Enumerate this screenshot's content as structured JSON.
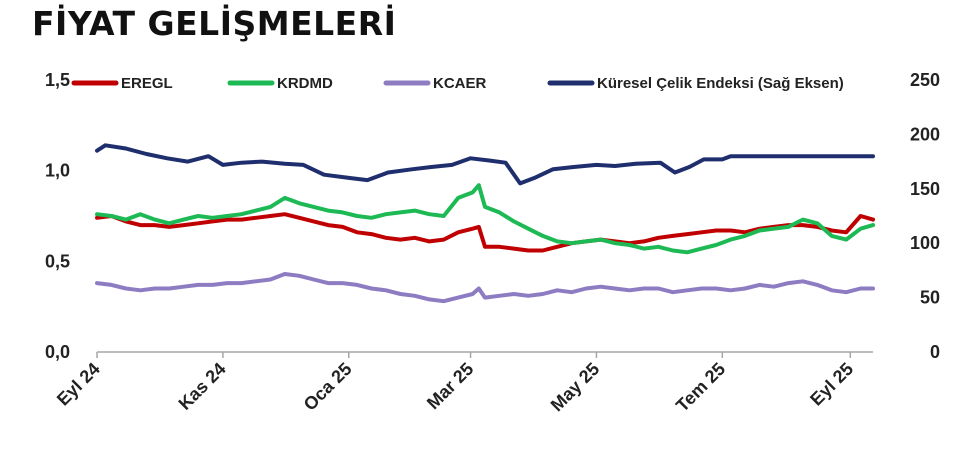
{
  "title": "FİYAT GELİŞMELERİ",
  "chart_data": {
    "type": "line",
    "x_start": "2024-09-01",
    "x_end": "2025-09-12",
    "x_ticks": [
      {
        "date": "2024-09-01",
        "label": "Eyl 24"
      },
      {
        "date": "2024-11-01",
        "label": "Kas 24"
      },
      {
        "date": "2025-01-01",
        "label": "Oca 25"
      },
      {
        "date": "2025-03-01",
        "label": "Mar 25"
      },
      {
        "date": "2025-05-01",
        "label": "May 25"
      },
      {
        "date": "2025-07-01",
        "label": "Tem 25"
      },
      {
        "date": "2025-09-01",
        "label": "Eyl 25"
      }
    ],
    "y_left": {
      "min": 0,
      "max": 1.5,
      "ticks": [
        "0,0",
        "0,5",
        "1,0",
        "1,5"
      ]
    },
    "y_right": {
      "min": 0,
      "max": 250,
      "ticks": [
        "0",
        "50",
        "100",
        "150",
        "200",
        "250"
      ]
    },
    "legend_position": "top",
    "grid": false,
    "series": [
      {
        "name": "EREGL",
        "color": "#c00000",
        "axis": "left",
        "points": [
          [
            "2024-09-01",
            0.74
          ],
          [
            "2024-09-08",
            0.75
          ],
          [
            "2024-09-15",
            0.72
          ],
          [
            "2024-09-22",
            0.7
          ],
          [
            "2024-09-29",
            0.7
          ],
          [
            "2024-10-06",
            0.69
          ],
          [
            "2024-10-13",
            0.7
          ],
          [
            "2024-10-20",
            0.71
          ],
          [
            "2024-10-27",
            0.72
          ],
          [
            "2024-11-03",
            0.73
          ],
          [
            "2024-11-10",
            0.73
          ],
          [
            "2024-11-17",
            0.74
          ],
          [
            "2024-11-24",
            0.75
          ],
          [
            "2024-12-01",
            0.76
          ],
          [
            "2024-12-08",
            0.74
          ],
          [
            "2024-12-15",
            0.72
          ],
          [
            "2024-12-22",
            0.7
          ],
          [
            "2024-12-29",
            0.69
          ],
          [
            "2025-01-05",
            0.66
          ],
          [
            "2025-01-12",
            0.65
          ],
          [
            "2025-01-19",
            0.63
          ],
          [
            "2025-01-26",
            0.62
          ],
          [
            "2025-02-02",
            0.63
          ],
          [
            "2025-02-09",
            0.61
          ],
          [
            "2025-02-16",
            0.62
          ],
          [
            "2025-02-23",
            0.66
          ],
          [
            "2025-03-02",
            0.68
          ],
          [
            "2025-03-05",
            0.69
          ],
          [
            "2025-03-08",
            0.58
          ],
          [
            "2025-03-15",
            0.58
          ],
          [
            "2025-03-22",
            0.57
          ],
          [
            "2025-03-29",
            0.56
          ],
          [
            "2025-04-05",
            0.56
          ],
          [
            "2025-04-12",
            0.58
          ],
          [
            "2025-04-19",
            0.6
          ],
          [
            "2025-04-26",
            0.61
          ],
          [
            "2025-05-03",
            0.62
          ],
          [
            "2025-05-10",
            0.61
          ],
          [
            "2025-05-17",
            0.6
          ],
          [
            "2025-05-24",
            0.61
          ],
          [
            "2025-05-31",
            0.63
          ],
          [
            "2025-06-07",
            0.64
          ],
          [
            "2025-06-14",
            0.65
          ],
          [
            "2025-06-21",
            0.66
          ],
          [
            "2025-06-28",
            0.67
          ],
          [
            "2025-07-05",
            0.67
          ],
          [
            "2025-07-12",
            0.66
          ],
          [
            "2025-07-19",
            0.68
          ],
          [
            "2025-07-26",
            0.69
          ],
          [
            "2025-08-02",
            0.7
          ],
          [
            "2025-08-09",
            0.7
          ],
          [
            "2025-08-16",
            0.69
          ],
          [
            "2025-08-23",
            0.67
          ],
          [
            "2025-08-30",
            0.66
          ],
          [
            "2025-09-06",
            0.75
          ],
          [
            "2025-09-12",
            0.73
          ]
        ]
      },
      {
        "name": "KRDMD",
        "color": "#1db954",
        "axis": "left",
        "points": [
          [
            "2024-09-01",
            0.76
          ],
          [
            "2024-09-08",
            0.75
          ],
          [
            "2024-09-15",
            0.73
          ],
          [
            "2024-09-22",
            0.76
          ],
          [
            "2024-09-29",
            0.73
          ],
          [
            "2024-10-06",
            0.71
          ],
          [
            "2024-10-13",
            0.73
          ],
          [
            "2024-10-20",
            0.75
          ],
          [
            "2024-10-27",
            0.74
          ],
          [
            "2024-11-03",
            0.75
          ],
          [
            "2024-11-10",
            0.76
          ],
          [
            "2024-11-17",
            0.78
          ],
          [
            "2024-11-24",
            0.8
          ],
          [
            "2024-12-01",
            0.85
          ],
          [
            "2024-12-08",
            0.82
          ],
          [
            "2024-12-15",
            0.8
          ],
          [
            "2024-12-22",
            0.78
          ],
          [
            "2024-12-29",
            0.77
          ],
          [
            "2025-01-05",
            0.75
          ],
          [
            "2025-01-12",
            0.74
          ],
          [
            "2025-01-19",
            0.76
          ],
          [
            "2025-01-26",
            0.77
          ],
          [
            "2025-02-02",
            0.78
          ],
          [
            "2025-02-09",
            0.76
          ],
          [
            "2025-02-16",
            0.75
          ],
          [
            "2025-02-23",
            0.85
          ],
          [
            "2025-03-02",
            0.88
          ],
          [
            "2025-03-05",
            0.92
          ],
          [
            "2025-03-08",
            0.8
          ],
          [
            "2025-03-15",
            0.77
          ],
          [
            "2025-03-22",
            0.72
          ],
          [
            "2025-03-29",
            0.68
          ],
          [
            "2025-04-05",
            0.64
          ],
          [
            "2025-04-12",
            0.61
          ],
          [
            "2025-04-19",
            0.6
          ],
          [
            "2025-04-26",
            0.61
          ],
          [
            "2025-05-03",
            0.62
          ],
          [
            "2025-05-10",
            0.6
          ],
          [
            "2025-05-17",
            0.59
          ],
          [
            "2025-05-24",
            0.57
          ],
          [
            "2025-05-31",
            0.58
          ],
          [
            "2025-06-07",
            0.56
          ],
          [
            "2025-06-14",
            0.55
          ],
          [
            "2025-06-21",
            0.57
          ],
          [
            "2025-06-28",
            0.59
          ],
          [
            "2025-07-05",
            0.62
          ],
          [
            "2025-07-12",
            0.64
          ],
          [
            "2025-07-19",
            0.67
          ],
          [
            "2025-07-26",
            0.68
          ],
          [
            "2025-08-02",
            0.69
          ],
          [
            "2025-08-09",
            0.73
          ],
          [
            "2025-08-16",
            0.71
          ],
          [
            "2025-08-23",
            0.64
          ],
          [
            "2025-08-30",
            0.62
          ],
          [
            "2025-09-06",
            0.68
          ],
          [
            "2025-09-12",
            0.7
          ]
        ]
      },
      {
        "name": "KCAER",
        "color": "#8e7cc3",
        "axis": "left",
        "points": [
          [
            "2024-09-01",
            0.38
          ],
          [
            "2024-09-08",
            0.37
          ],
          [
            "2024-09-15",
            0.35
          ],
          [
            "2024-09-22",
            0.34
          ],
          [
            "2024-09-29",
            0.35
          ],
          [
            "2024-10-06",
            0.35
          ],
          [
            "2024-10-13",
            0.36
          ],
          [
            "2024-10-20",
            0.37
          ],
          [
            "2024-10-27",
            0.37
          ],
          [
            "2024-11-03",
            0.38
          ],
          [
            "2024-11-10",
            0.38
          ],
          [
            "2024-11-17",
            0.39
          ],
          [
            "2024-11-24",
            0.4
          ],
          [
            "2024-12-01",
            0.43
          ],
          [
            "2024-12-08",
            0.42
          ],
          [
            "2024-12-15",
            0.4
          ],
          [
            "2024-12-22",
            0.38
          ],
          [
            "2024-12-29",
            0.38
          ],
          [
            "2025-01-05",
            0.37
          ],
          [
            "2025-01-12",
            0.35
          ],
          [
            "2025-01-19",
            0.34
          ],
          [
            "2025-01-26",
            0.32
          ],
          [
            "2025-02-02",
            0.31
          ],
          [
            "2025-02-09",
            0.29
          ],
          [
            "2025-02-16",
            0.28
          ],
          [
            "2025-02-23",
            0.3
          ],
          [
            "2025-03-02",
            0.32
          ],
          [
            "2025-03-05",
            0.35
          ],
          [
            "2025-03-08",
            0.3
          ],
          [
            "2025-03-15",
            0.31
          ],
          [
            "2025-03-22",
            0.32
          ],
          [
            "2025-03-29",
            0.31
          ],
          [
            "2025-04-05",
            0.32
          ],
          [
            "2025-04-12",
            0.34
          ],
          [
            "2025-04-19",
            0.33
          ],
          [
            "2025-04-26",
            0.35
          ],
          [
            "2025-05-03",
            0.36
          ],
          [
            "2025-05-10",
            0.35
          ],
          [
            "2025-05-17",
            0.34
          ],
          [
            "2025-05-24",
            0.35
          ],
          [
            "2025-05-31",
            0.35
          ],
          [
            "2025-06-07",
            0.33
          ],
          [
            "2025-06-14",
            0.34
          ],
          [
            "2025-06-21",
            0.35
          ],
          [
            "2025-06-28",
            0.35
          ],
          [
            "2025-07-05",
            0.34
          ],
          [
            "2025-07-12",
            0.35
          ],
          [
            "2025-07-19",
            0.37
          ],
          [
            "2025-07-26",
            0.36
          ],
          [
            "2025-08-02",
            0.38
          ],
          [
            "2025-08-09",
            0.39
          ],
          [
            "2025-08-16",
            0.37
          ],
          [
            "2025-08-23",
            0.34
          ],
          [
            "2025-08-30",
            0.33
          ],
          [
            "2025-09-06",
            0.35
          ],
          [
            "2025-09-12",
            0.35
          ]
        ]
      },
      {
        "name": "Küresel Çelik Endeksi (Sağ Eksen)",
        "color": "#1f2f6e",
        "axis": "right",
        "points": [
          [
            "2024-09-01",
            185
          ],
          [
            "2024-09-05",
            190
          ],
          [
            "2024-09-15",
            187
          ],
          [
            "2024-09-25",
            182
          ],
          [
            "2024-10-05",
            178
          ],
          [
            "2024-10-15",
            175
          ],
          [
            "2024-10-25",
            180
          ],
          [
            "2024-11-01",
            172
          ],
          [
            "2024-11-10",
            174
          ],
          [
            "2024-11-20",
            175
          ],
          [
            "2024-12-01",
            173
          ],
          [
            "2024-12-10",
            172
          ],
          [
            "2024-12-20",
            163
          ],
          [
            "2025-01-01",
            160
          ],
          [
            "2025-01-10",
            158
          ],
          [
            "2025-01-20",
            165
          ],
          [
            "2025-02-01",
            168
          ],
          [
            "2025-02-10",
            170
          ],
          [
            "2025-02-20",
            172
          ],
          [
            "2025-03-01",
            178
          ],
          [
            "2025-03-10",
            176
          ],
          [
            "2025-03-18",
            174
          ],
          [
            "2025-03-25",
            155
          ],
          [
            "2025-04-01",
            160
          ],
          [
            "2025-04-10",
            168
          ],
          [
            "2025-04-20",
            170
          ],
          [
            "2025-05-01",
            172
          ],
          [
            "2025-05-10",
            171
          ],
          [
            "2025-05-20",
            173
          ],
          [
            "2025-06-01",
            174
          ],
          [
            "2025-06-08",
            165
          ],
          [
            "2025-06-15",
            170
          ],
          [
            "2025-06-22",
            177
          ],
          [
            "2025-07-01",
            177
          ],
          [
            "2025-07-05",
            180
          ],
          [
            "2025-07-15",
            180
          ],
          [
            "2025-08-01",
            180
          ],
          [
            "2025-08-15",
            180
          ],
          [
            "2025-09-01",
            180
          ],
          [
            "2025-09-12",
            180
          ]
        ]
      }
    ]
  }
}
